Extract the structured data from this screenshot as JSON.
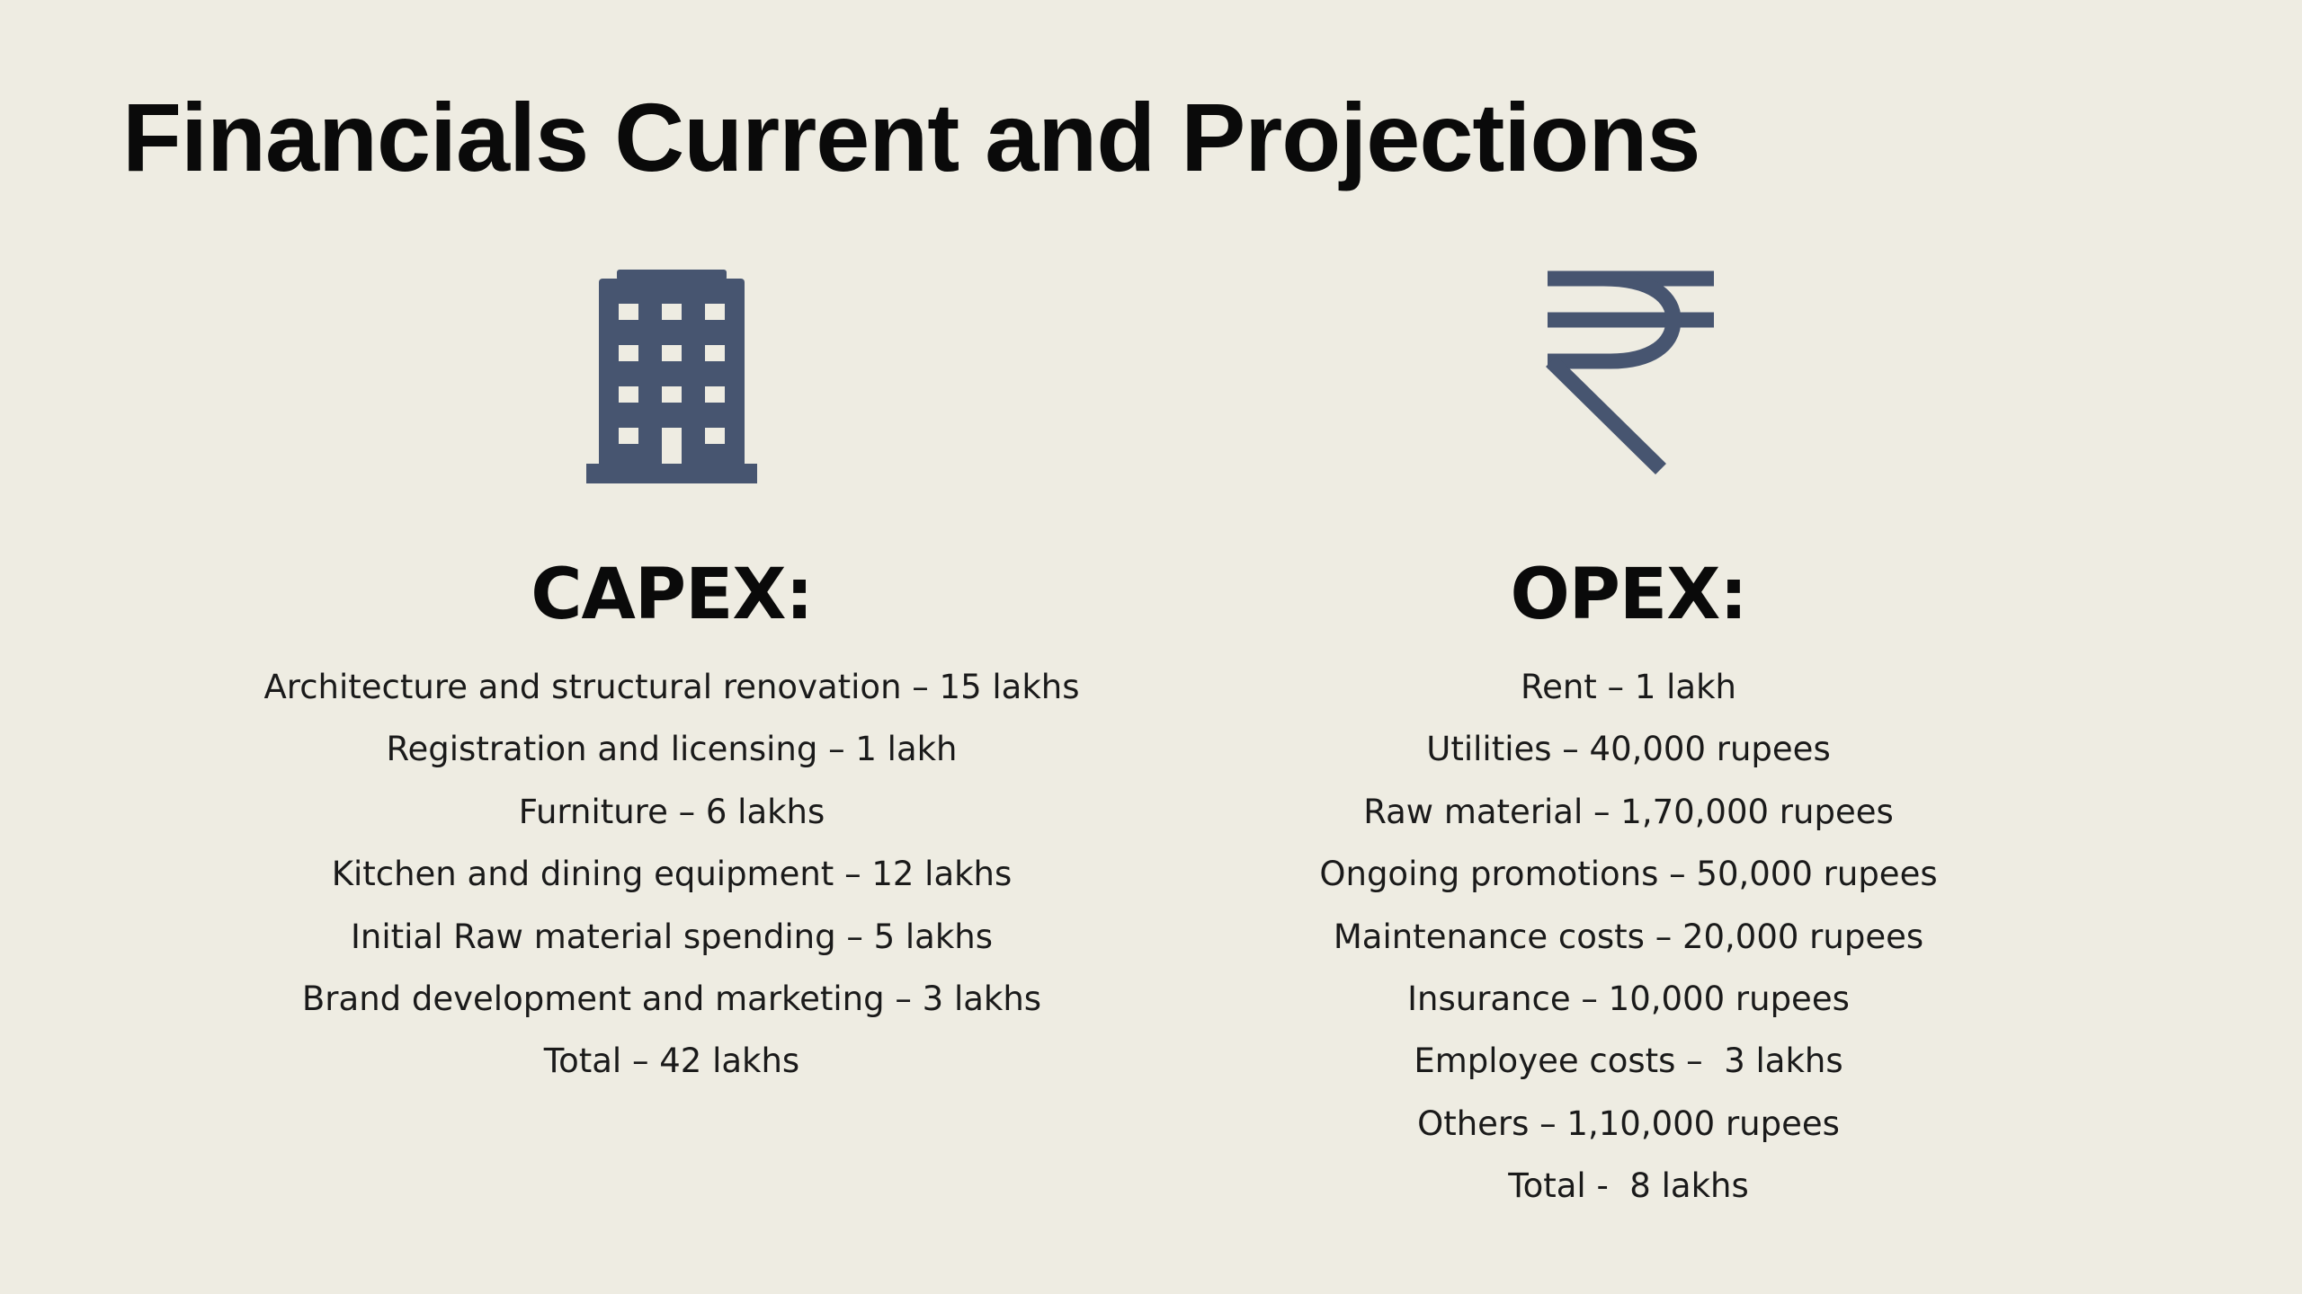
{
  "title": "Financials Current and Projections",
  "icon_color": "#475570",
  "capex": {
    "icon": "building-icon",
    "heading": "CAPEX:",
    "items": [
      "Architecture and structural renovation – 15 lakhs",
      "Registration and licensing – 1 lakh",
      "Furniture – 6 lakhs",
      "Kitchen and dining equipment – 12 lakhs",
      "Initial Raw material spending – 5 lakhs",
      "Brand development and marketing – 3 lakhs",
      "Total – 42 lakhs"
    ]
  },
  "opex": {
    "icon": "rupee-icon",
    "heading": "OPEX:",
    "items": [
      "Rent – 1 lakh",
      "Utilities – 40,000 rupees",
      "Raw material – 1,70,000 rupees",
      "Ongoing promotions – 50,000 rupees",
      "Maintenance costs – 20,000 rupees",
      "Insurance – 10,000 rupees",
      "Employee costs –  3 lakhs",
      "Others – 1,10,000 rupees",
      "Total -  8 lakhs"
    ]
  }
}
